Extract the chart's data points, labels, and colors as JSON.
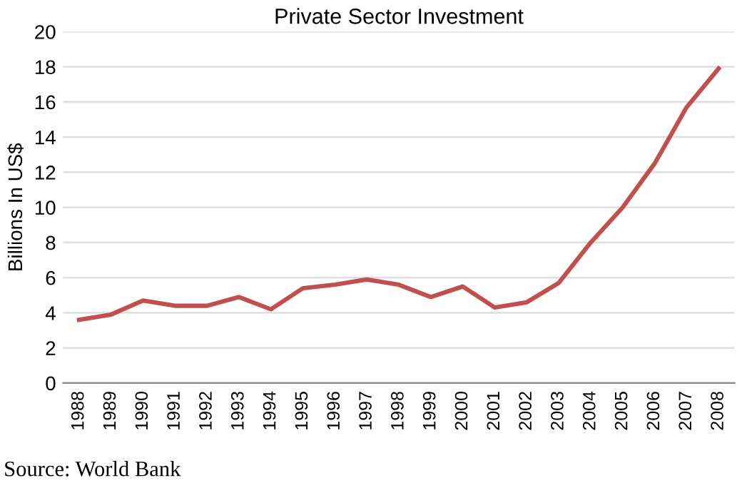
{
  "chart_data": {
    "type": "line",
    "title": "Private Sector Investment",
    "ylabel": "Billions In US$",
    "categories": [
      "1988",
      "1989",
      "1990",
      "1991",
      "1992",
      "1993",
      "1994",
      "1995",
      "1996",
      "1997",
      "1998",
      "1999",
      "2000",
      "2001",
      "2002",
      "2003",
      "2004",
      "2005",
      "2006",
      "2007",
      "2008"
    ],
    "series": [
      {
        "color": "#c0504d",
        "values": [
          3.6,
          3.9,
          4.7,
          4.4,
          4.4,
          4.9,
          4.2,
          5.4,
          5.6,
          5.9,
          5.6,
          4.9,
          5.5,
          4.3,
          4.6,
          5.7,
          8.0,
          10.0,
          12.5,
          15.7,
          17.9
        ]
      }
    ],
    "ylim": [
      0,
      20
    ],
    "yticks": [
      0,
      2,
      4,
      6,
      8,
      10,
      12,
      14,
      16,
      18,
      20
    ],
    "grid": "y",
    "marker": "none",
    "line_style": "solid",
    "annotations": [
      "Source: World Bank"
    ]
  }
}
